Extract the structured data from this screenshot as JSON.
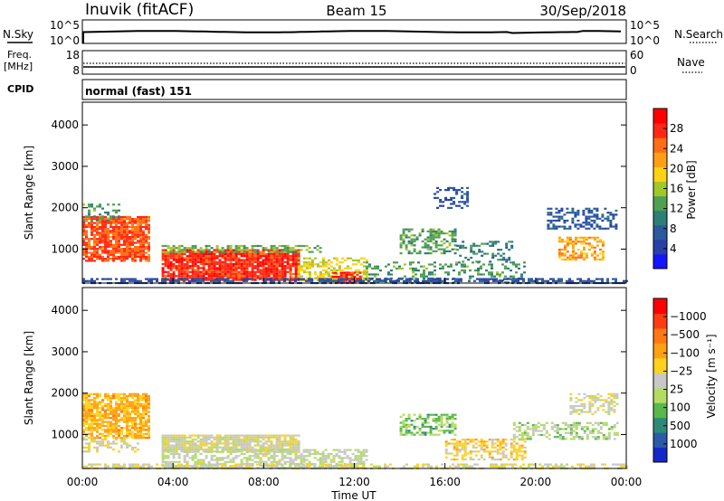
{
  "header": {
    "station": "Inuvik (fitACF)",
    "beam": "Beam 15",
    "date": "30/Sep/2018"
  },
  "top_panels": {
    "nsky_label": "N.Sky",
    "nsearch_label": "N.Search",
    "nsky_ticks": [
      "10^5",
      "10^0"
    ],
    "nsearch_ticks": [
      "10^5",
      "10^0"
    ],
    "freq_label_line1": "Freq.",
    "freq_label_line2": "[MHz]",
    "freq_ticks": [
      "18",
      "8"
    ],
    "nave_label": "Nave",
    "nave_ticks": [
      "60",
      "0"
    ],
    "cpid_label": "CPID",
    "cpid_text": "normal (fast) 151"
  },
  "power_panel": {
    "ylabel": "Slant Range [km]",
    "yticks": [
      "1000",
      "2000",
      "3000",
      "4000"
    ],
    "cbar_label": "Power [dB]",
    "cbar_ticks": [
      "4",
      "8",
      "12",
      "16",
      "20",
      "24",
      "28"
    ],
    "cbar_colors": [
      "#1414ff",
      "#2840a8",
      "#2a5a9c",
      "#2e7e78",
      "#4fa050",
      "#a0c828",
      "#ffd214",
      "#ffa014",
      "#ff6e14",
      "#ff2814",
      "#ff0000"
    ]
  },
  "velocity_panel": {
    "ylabel": "Slant Range [km]",
    "yticks": [
      "1000",
      "2000",
      "3000",
      "4000"
    ],
    "cbar_label": "Velocity [m s⁻¹]",
    "cbar_ticks": [
      "1000",
      "500",
      "100",
      "25",
      "−25",
      "−100",
      "−500",
      "−1000"
    ],
    "cbar_colors": [
      "#1428c8",
      "#2a5aa8",
      "#2e8a78",
      "#5ab84a",
      "#b4dc64",
      "#c8c8c8",
      "#ffd21e",
      "#ffa014",
      "#ff7814",
      "#ff3c14",
      "#ff0000"
    ]
  },
  "xaxis": {
    "label": "Time UT",
    "ticks": [
      "00:00",
      "04:00",
      "08:00",
      "12:00",
      "16:00",
      "20:00",
      "00:00"
    ]
  },
  "chart_data": [
    {
      "type": "heatmap",
      "title": "Power [dB]",
      "xlabel": "Time UT",
      "ylabel": "Slant Range [km]",
      "xlim": [
        0,
        24
      ],
      "ylim": [
        180,
        4550
      ],
      "clim": [
        0,
        32
      ],
      "scatter_regions": [
        {
          "t0": 0.0,
          "t1": 2.9,
          "r0": 700,
          "r1": 1800,
          "value": 26,
          "density": 0.85
        },
        {
          "t0": 0.0,
          "t1": 1.6,
          "r0": 1700,
          "r1": 2100,
          "value": 12,
          "density": 0.4
        },
        {
          "t0": 3.5,
          "t1": 9.6,
          "r0": 250,
          "r1": 1000,
          "value": 28,
          "density": 0.9
        },
        {
          "t0": 3.5,
          "t1": 10.5,
          "r0": 950,
          "r1": 1100,
          "value": 14,
          "density": 0.5
        },
        {
          "t0": 9.5,
          "t1": 12.5,
          "r0": 250,
          "r1": 800,
          "value": 18,
          "density": 0.55
        },
        {
          "t0": 11.0,
          "t1": 12.3,
          "r0": 200,
          "r1": 450,
          "value": 28,
          "density": 0.7
        },
        {
          "t0": 12.5,
          "t1": 19.5,
          "r0": 200,
          "r1": 700,
          "value": 12,
          "density": 0.3
        },
        {
          "t0": 14.0,
          "t1": 16.5,
          "r0": 900,
          "r1": 1500,
          "value": 13,
          "density": 0.5
        },
        {
          "t0": 15.5,
          "t1": 17.0,
          "r0": 2000,
          "r1": 2500,
          "value": 6,
          "density": 0.35
        },
        {
          "t0": 16.5,
          "t1": 19.0,
          "r0": 700,
          "r1": 1200,
          "value": 10,
          "density": 0.35
        },
        {
          "t0": 21.0,
          "t1": 23.0,
          "r0": 750,
          "r1": 1300,
          "value": 22,
          "density": 0.6
        },
        {
          "t0": 20.5,
          "t1": 23.6,
          "r0": 1500,
          "r1": 2000,
          "value": 7,
          "density": 0.45
        },
        {
          "t0": 0.0,
          "t1": 24.0,
          "r0": 180,
          "r1": 300,
          "value": 6,
          "density": 0.6
        }
      ]
    },
    {
      "type": "heatmap",
      "title": "Velocity [m s⁻¹]",
      "xlabel": "Time UT",
      "ylabel": "Slant Range [km]",
      "xlim": [
        0,
        24
      ],
      "ylim": [
        180,
        4550
      ],
      "clim": [
        -1000,
        1000
      ],
      "scatter_regions": [
        {
          "t0": 0.0,
          "t1": 2.9,
          "r0": 900,
          "r1": 2000,
          "value": -300,
          "density": 0.8
        },
        {
          "t0": 0.0,
          "t1": 2.5,
          "r0": 600,
          "r1": 900,
          "value": -60,
          "density": 0.4
        },
        {
          "t0": 3.5,
          "t1": 9.6,
          "r0": 600,
          "r1": 1000,
          "value": 0,
          "density": 0.9
        },
        {
          "t0": 3.5,
          "t1": 12.5,
          "r0": 200,
          "r1": 650,
          "value": 80,
          "density": 0.6
        },
        {
          "t0": 14.0,
          "t1": 16.5,
          "r0": 1000,
          "r1": 1500,
          "value": 300,
          "density": 0.5
        },
        {
          "t0": 16.0,
          "t1": 19.5,
          "r0": 400,
          "r1": 900,
          "value": -150,
          "density": 0.5
        },
        {
          "t0": 19.0,
          "t1": 23.6,
          "r0": 900,
          "r1": 1300,
          "value": 150,
          "density": 0.5
        },
        {
          "t0": 21.5,
          "t1": 23.6,
          "r0": 1500,
          "r1": 2000,
          "value": 0,
          "density": 0.5
        },
        {
          "t0": 0.0,
          "t1": 24.0,
          "r0": 180,
          "r1": 300,
          "value": -40,
          "density": 0.5
        }
      ]
    }
  ]
}
